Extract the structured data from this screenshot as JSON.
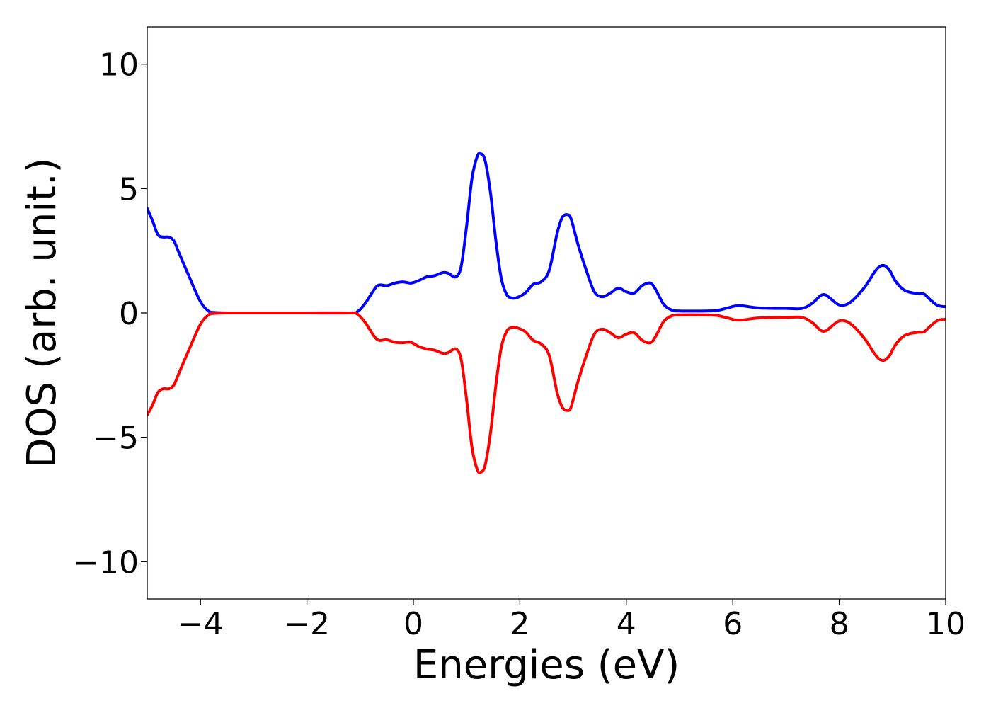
{
  "chart_data": {
    "type": "line",
    "xlabel": "Energies (eV)",
    "ylabel": "DOS (arb. unit.)",
    "xlim": [
      -5,
      10
    ],
    "ylim": [
      -11.5,
      11.5
    ],
    "x_ticks": [
      -4,
      -2,
      0,
      2,
      4,
      6,
      8,
      10
    ],
    "y_ticks": [
      -10,
      -5,
      0,
      5,
      10
    ],
    "x_tick_labels": [
      "−4",
      "−2",
      "0",
      "2",
      "4",
      "6",
      "8",
      "10"
    ],
    "y_tick_labels": [
      "−10",
      "−5",
      "0",
      "5",
      "10"
    ],
    "grid": false,
    "series": [
      {
        "color": "#0000ff",
        "x": [
          -5,
          -4.9,
          -4.8,
          -4.7,
          -4.6,
          -4.5,
          -4.4,
          -4.2,
          -4.0,
          -3.85,
          -3.75,
          -3.5,
          -3.0,
          -2.0,
          -1.2,
          -1.05,
          -0.9,
          -0.75,
          -0.65,
          -0.5,
          -0.35,
          -0.2,
          -0.05,
          0.1,
          0.25,
          0.4,
          0.55,
          0.65,
          0.8,
          0.9,
          1.0,
          1.1,
          1.2,
          1.27,
          1.35,
          1.45,
          1.55,
          1.65,
          1.75,
          1.85,
          1.95,
          2.1,
          2.25,
          2.4,
          2.55,
          2.7,
          2.8,
          2.9,
          2.95,
          3.0,
          3.1,
          3.25,
          3.4,
          3.55,
          3.7,
          3.85,
          4.0,
          4.15,
          4.3,
          4.45,
          4.55,
          4.7,
          4.85,
          5.0,
          5.5,
          5.7,
          5.9,
          6.05,
          6.2,
          6.5,
          7.0,
          7.3,
          7.5,
          7.65,
          7.75,
          7.85,
          8.0,
          8.15,
          8.3,
          8.5,
          8.65,
          8.75,
          8.85,
          8.95,
          9.05,
          9.2,
          9.35,
          9.5,
          9.6,
          9.7,
          9.85,
          10.0
        ],
        "y": [
          4.2,
          3.7,
          3.15,
          3.05,
          3.05,
          2.9,
          2.4,
          1.4,
          0.45,
          0.08,
          0.02,
          0.0,
          0.0,
          0.0,
          0.0,
          0.05,
          0.4,
          0.9,
          1.12,
          1.1,
          1.2,
          1.25,
          1.2,
          1.3,
          1.45,
          1.5,
          1.62,
          1.6,
          1.45,
          1.9,
          3.5,
          5.4,
          6.3,
          6.4,
          6.1,
          4.8,
          2.9,
          1.4,
          0.75,
          0.6,
          0.62,
          0.8,
          1.15,
          1.25,
          1.7,
          3.2,
          3.85,
          3.95,
          3.85,
          3.5,
          2.7,
          1.7,
          0.85,
          0.65,
          0.8,
          1.0,
          0.85,
          0.8,
          1.1,
          1.2,
          0.95,
          0.35,
          0.12,
          0.08,
          0.08,
          0.1,
          0.2,
          0.28,
          0.28,
          0.2,
          0.18,
          0.18,
          0.4,
          0.7,
          0.72,
          0.55,
          0.32,
          0.35,
          0.6,
          1.1,
          1.6,
          1.85,
          1.9,
          1.7,
          1.3,
          0.95,
          0.82,
          0.78,
          0.75,
          0.55,
          0.3,
          0.25
        ]
      },
      {
        "color": "#ff0000",
        "x": [
          -5,
          -4.9,
          -4.8,
          -4.7,
          -4.6,
          -4.5,
          -4.4,
          -4.2,
          -4.0,
          -3.85,
          -3.75,
          -3.5,
          -3.0,
          -2.0,
          -1.2,
          -1.05,
          -0.9,
          -0.75,
          -0.65,
          -0.5,
          -0.35,
          -0.2,
          -0.05,
          0.1,
          0.25,
          0.4,
          0.55,
          0.65,
          0.8,
          0.9,
          1.0,
          1.1,
          1.2,
          1.27,
          1.35,
          1.45,
          1.55,
          1.65,
          1.75,
          1.85,
          1.95,
          2.1,
          2.25,
          2.4,
          2.55,
          2.7,
          2.8,
          2.9,
          2.95,
          3.0,
          3.1,
          3.25,
          3.4,
          3.55,
          3.7,
          3.85,
          4.0,
          4.15,
          4.3,
          4.45,
          4.55,
          4.7,
          4.85,
          5.0,
          5.5,
          5.7,
          5.9,
          6.05,
          6.2,
          6.5,
          7.0,
          7.3,
          7.5,
          7.65,
          7.75,
          7.85,
          8.0,
          8.15,
          8.3,
          8.5,
          8.65,
          8.75,
          8.85,
          8.95,
          9.05,
          9.2,
          9.35,
          9.5,
          9.6,
          9.7,
          9.85,
          10.0
        ],
        "y": [
          -4.1,
          -3.7,
          -3.2,
          -3.05,
          -3.05,
          -2.9,
          -2.4,
          -1.4,
          -0.45,
          -0.08,
          -0.02,
          0.0,
          0.0,
          0.0,
          0.0,
          -0.05,
          -0.4,
          -0.9,
          -1.1,
          -1.08,
          -1.18,
          -1.2,
          -1.18,
          -1.35,
          -1.45,
          -1.5,
          -1.62,
          -1.6,
          -1.45,
          -1.9,
          -3.5,
          -5.4,
          -6.3,
          -6.4,
          -6.1,
          -4.8,
          -2.9,
          -1.4,
          -0.75,
          -0.58,
          -0.6,
          -0.75,
          -1.1,
          -1.25,
          -1.7,
          -3.2,
          -3.8,
          -3.92,
          -3.85,
          -3.5,
          -2.7,
          -1.7,
          -0.85,
          -0.65,
          -0.8,
          -1.0,
          -0.85,
          -0.8,
          -1.1,
          -1.2,
          -0.95,
          -0.35,
          -0.12,
          -0.08,
          -0.08,
          -0.1,
          -0.2,
          -0.28,
          -0.28,
          -0.2,
          -0.18,
          -0.18,
          -0.4,
          -0.7,
          -0.72,
          -0.55,
          -0.32,
          -0.35,
          -0.6,
          -1.1,
          -1.6,
          -1.85,
          -1.9,
          -1.7,
          -1.3,
          -0.95,
          -0.82,
          -0.78,
          -0.75,
          -0.55,
          -0.3,
          -0.25
        ]
      }
    ]
  }
}
